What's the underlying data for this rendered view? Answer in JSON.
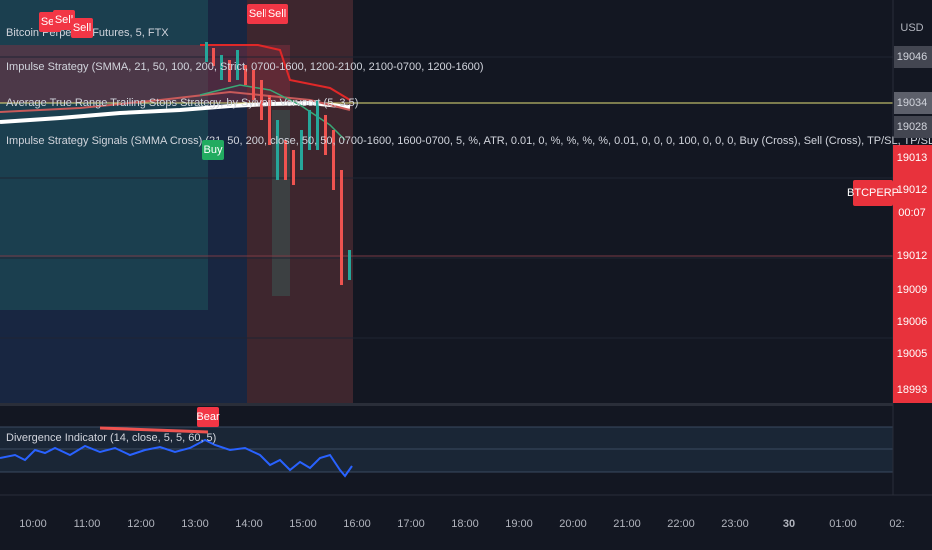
{
  "legend": {
    "symbol": "Bitcoin Perpetual Futures, 5, FTX",
    "indicators": [
      "Impulse Strategy (SMMA, 21, 50, 100, 200, Strict, 0700-1600, 1200-2100, 2100-0700, 1200-1600)",
      "Average True Range Trailing Stops Strategy, by Sylvain Vervoort (5, 3.5)",
      "Impulse Strategy Signals (SMMA Cross) (21, 50, 200, close, 50, 50, 0700-1600, 1600-0700, 5, %, ATR, 0.01, 0, %, %, %, %, 0.01, 0, 0, 0, 100, 0, 0, 0, Buy (Cross), Sell  (Cross), TP/SL, TP/SL)"
    ],
    "oscillator": "Divergence Indicator (14, close, 5, 5, 60, 5)"
  },
  "price_axis": {
    "currency": "USD",
    "labels": [
      "19046",
      "19034",
      "19028",
      "19013",
      "19012",
      "00:07",
      "19012",
      "19009",
      "19006",
      "19005",
      "18993"
    ],
    "symbol_tag": "BTCPERP"
  },
  "time_axis": [
    "10:00",
    "11:00",
    "12:00",
    "13:00",
    "14:00",
    "15:00",
    "16:00",
    "17:00",
    "18:00",
    "19:00",
    "20:00",
    "21:00",
    "22:00",
    "23:00",
    "30",
    "01:00",
    "02:"
  ],
  "signals": [
    "Sell",
    "Sell",
    "Sell",
    "Sell",
    "Sell",
    "Buy",
    "Bear"
  ]
}
